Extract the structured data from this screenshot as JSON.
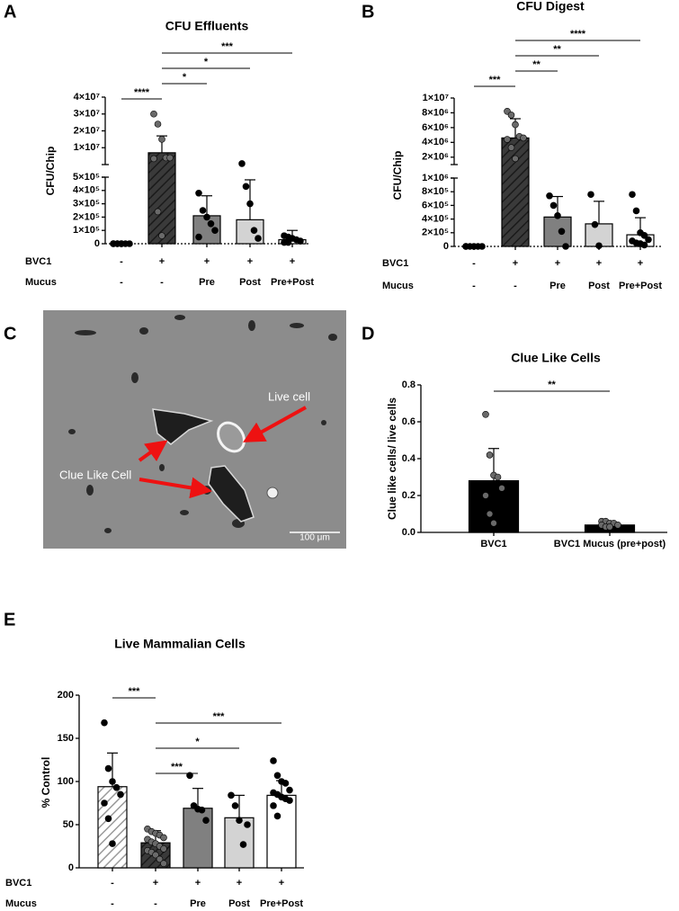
{
  "chart_data": [
    {
      "panel_label": "A",
      "type": "bar",
      "title": "CFU Effluents",
      "y_label": "CFU/Chip",
      "row_labels": [
        "BVC1",
        "Mucus"
      ],
      "rows": [
        [
          "-",
          "+",
          "+",
          "+",
          "+"
        ],
        [
          "-",
          "-",
          "Pre",
          "Post",
          "Pre+Post"
        ]
      ],
      "values": [
        0,
        7000000,
        210000,
        180000,
        30000
      ],
      "errors": [
        0,
        10000000,
        150000,
        300000,
        70000
      ],
      "points": [
        [
          0,
          0,
          0,
          0,
          0,
          0,
          0,
          0
        ],
        [
          30000000,
          24000000,
          15000000,
          4000000,
          4000000,
          3500000,
          240000,
          60000
        ],
        [
          380000,
          250000,
          200000,
          150000,
          100000,
          50000
        ],
        [
          590000,
          430000,
          300000,
          100000,
          40000
        ],
        [
          60000,
          50000,
          40000,
          30000,
          20000,
          10000,
          10000
        ]
      ],
      "bar_colors": [
        "#ffffff",
        "#3a3a3a",
        "#808080",
        "#d3d3d3",
        "#ffffff"
      ],
      "bar_patterns": [
        "none",
        "hatch-dark",
        "none",
        "none",
        "none"
      ],
      "point_colors": [
        "#000000",
        "#6a6a6a",
        "#000000",
        "#000000",
        "#000000"
      ],
      "y_segments": [
        {
          "ylim": [
            0,
            500000
          ],
          "yticks": [
            0,
            {
              "value": 100000,
              "label": "1×10⁵"
            },
            {
              "value": 200000,
              "label": "2×10⁵"
            },
            {
              "value": 300000,
              "label": "3×10⁵"
            },
            {
              "value": 400000,
              "label": "4×10⁵"
            },
            {
              "value": 500000,
              "label": "5×10⁵"
            }
          ]
        },
        {
          "ylim": [
            0,
            40000000
          ],
          "yticks": [
            {
              "value": 10000000,
              "label": "1×10⁷"
            },
            {
              "value": 20000000,
              "label": "2×10⁷"
            },
            {
              "value": 30000000,
              "label": "3×10⁷"
            },
            {
              "value": 40000000,
              "label": "4×10⁷"
            }
          ]
        }
      ],
      "significance": [
        {
          "from": 0,
          "to": 1,
          "label": "****"
        },
        {
          "from": 1,
          "to": 2,
          "label": "*"
        },
        {
          "from": 1,
          "to": 3,
          "label": "*"
        },
        {
          "from": 1,
          "to": 4,
          "label": "***"
        }
      ]
    },
    {
      "panel_label": "B",
      "type": "bar",
      "title": "CFU Digest",
      "y_label": "CFU/Chip",
      "row_labels": [
        "BVC1",
        "Mucus"
      ],
      "rows": [
        [
          "-",
          "+",
          "+",
          "+",
          "+"
        ],
        [
          "-",
          "-",
          "Pre",
          "Post",
          "Pre+Post"
        ]
      ],
      "values": [
        0,
        4600000,
        430000,
        330000,
        170000
      ],
      "errors": [
        0,
        2600000,
        300000,
        330000,
        250000
      ],
      "points": [
        [
          0,
          0,
          0,
          0,
          0,
          0
        ],
        [
          8200000,
          7700000,
          6400000,
          4800000,
          4600000,
          4400000,
          3300000,
          1800000
        ],
        [
          740000,
          600000,
          450000,
          220000,
          0
        ],
        [
          760000,
          320000,
          10000
        ],
        [
          760000,
          520000,
          200000,
          160000,
          100000,
          80000,
          50000,
          40000,
          20000
        ]
      ],
      "bar_colors": [
        "#ffffff",
        "#3a3a3a",
        "#808080",
        "#d3d3d3",
        "#ffffff"
      ],
      "bar_patterns": [
        "none",
        "hatch-dark",
        "none",
        "none",
        "none"
      ],
      "point_colors": [
        "#000000",
        "#6a6a6a",
        "#000000",
        "#000000",
        "#000000"
      ],
      "y_segments": [
        {
          "ylim": [
            0,
            1000000
          ],
          "yticks": [
            0,
            {
              "value": 200000,
              "label": "2×10⁵"
            },
            {
              "value": 400000,
              "label": "4×10⁵"
            },
            {
              "value": 600000,
              "label": "6×10⁵"
            },
            {
              "value": 800000,
              "label": "8×10⁵"
            },
            {
              "value": 1000000,
              "label": "1×10⁶"
            }
          ]
        },
        {
          "ylim": [
            1000000,
            10000000
          ],
          "yticks": [
            {
              "value": 2000000,
              "label": "2×10⁶"
            },
            {
              "value": 4000000,
              "label": "4×10⁶"
            },
            {
              "value": 6000000,
              "label": "6×10⁶"
            },
            {
              "value": 8000000,
              "label": "8×10⁶"
            },
            {
              "value": 10000000,
              "label": "1×10⁷"
            }
          ]
        }
      ],
      "significance": [
        {
          "from": 0,
          "to": 1,
          "label": "***"
        },
        {
          "from": 1,
          "to": 2,
          "label": "**"
        },
        {
          "from": 1,
          "to": 3,
          "label": "**"
        },
        {
          "from": 1,
          "to": 4,
          "label": "****"
        }
      ]
    },
    {
      "panel_label": "D",
      "type": "bar",
      "title": "Clue Like Cells",
      "y_label": "Clue like cells/ live cells",
      "categories": [
        "BVC1",
        "BVC1 Mucus (pre+post)"
      ],
      "values": [
        0.28,
        0.04
      ],
      "errors": [
        0.175,
        0.02
      ],
      "points": [
        [
          0.64,
          0.42,
          0.31,
          0.3,
          0.24,
          0.2,
          0.1,
          0.05
        ],
        [
          0.06,
          0.06,
          0.05,
          0.05,
          0.04,
          0.04,
          0.03,
          0.03
        ]
      ],
      "bar_colors": [
        "#000000",
        "#000000"
      ],
      "bar_patterns": [
        "none",
        "none"
      ],
      "point_colors": [
        "#6a6a6a",
        "#6a6a6a"
      ],
      "ylim": [
        0,
        0.8
      ],
      "yticks": [
        {
          "value": 0,
          "label": "0.0"
        },
        0.2,
        0.4,
        0.6,
        0.8
      ],
      "significance": [
        {
          "from": 0,
          "to": 1,
          "label": "**"
        }
      ]
    },
    {
      "panel_label": "E",
      "type": "bar",
      "title": "Live Mammalian Cells",
      "y_label": "% Control",
      "row_labels": [
        "BVC1",
        "Mucus"
      ],
      "rows": [
        [
          "-",
          "+",
          "+",
          "+",
          "+"
        ],
        [
          "-",
          "-",
          "Pre",
          "Post",
          "Pre+Post"
        ]
      ],
      "values": [
        94,
        29,
        69,
        58,
        84
      ],
      "errors": [
        39,
        14,
        23,
        26,
        17
      ],
      "points": [
        [
          168,
          115,
          100,
          93,
          85,
          75,
          57,
          28
        ],
        [
          45,
          42,
          40,
          38,
          35,
          33,
          30,
          28,
          25,
          22,
          20,
          18,
          15,
          10,
          5
        ],
        [
          107,
          72,
          68,
          67,
          55
        ],
        [
          84,
          72,
          55,
          27,
          50
        ],
        [
          124,
          107,
          100,
          98,
          90,
          87,
          85,
          82,
          80,
          78,
          72,
          60
        ]
      ],
      "bar_colors": [
        "#ffffff",
        "#3a3a3a",
        "#808080",
        "#d3d3d3",
        "#ffffff"
      ],
      "bar_patterns": [
        "hatch-light",
        "hatch-dark",
        "none",
        "none",
        "none"
      ],
      "point_colors": [
        "#000000",
        "#6a6a6a",
        "#000000",
        "#000000",
        "#000000"
      ],
      "ylim": [
        0,
        200
      ],
      "yticks": [
        0,
        50,
        100,
        150,
        200
      ],
      "significance": [
        {
          "from": 1,
          "to": 2,
          "label": "***"
        },
        {
          "from": 1,
          "to": 3,
          "label": "*"
        },
        {
          "from": 1,
          "to": 4,
          "label": "***"
        },
        {
          "from": 0,
          "to": 1,
          "label": "***"
        }
      ]
    }
  ],
  "image_panel": {
    "panel_label": "C",
    "labels": [
      "Live cell",
      "Clue Like Cell"
    ],
    "scale_bar": "100 μm"
  }
}
